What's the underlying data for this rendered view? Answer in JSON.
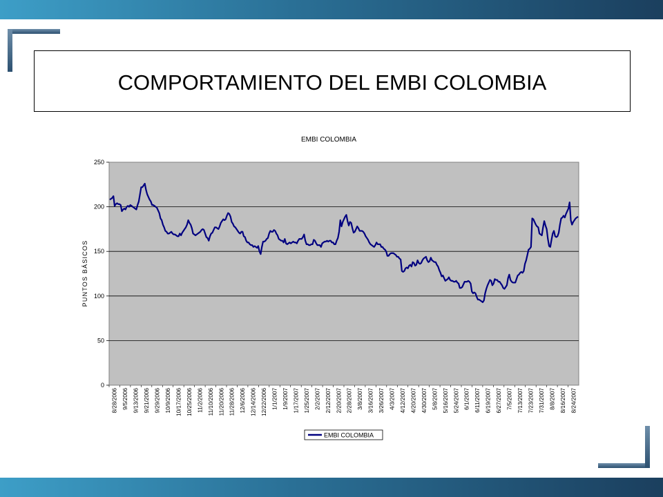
{
  "slide": {
    "title": "COMPORTAMIENTO DEL EMBI COLOMBIA"
  },
  "colors": {
    "band_light": "#3d9ec7",
    "band_dark": "#1b3f5e",
    "plot_background": "#c0c0c0",
    "series_line": "#000080"
  },
  "chart_data": {
    "type": "line",
    "title": "EMBI COLOMBIA",
    "xlabel": "",
    "ylabel": "PUNTOS BÁSICOS",
    "ylim": [
      0,
      250
    ],
    "yticks": [
      0,
      50,
      100,
      150,
      200,
      250
    ],
    "grid": true,
    "legend": "bottom",
    "x_tick_labels": [
      "8/28/2006",
      "9/5/2006",
      "9/13/2006",
      "9/21/2006",
      "9/29/2006",
      "10/9/2006",
      "10/17/2006",
      "10/25/2006",
      "11/2/2006",
      "11/10/2006",
      "11/20/2006",
      "11/28/2006",
      "12/6/2006",
      "12/14/2006",
      "12/22/2006",
      "1/1/2007",
      "1/9/2007",
      "1/17/2007",
      "1/25/2007",
      "2/2/2007",
      "2/12/2007",
      "2/20/2007",
      "2/28/2007",
      "3/8/2007",
      "3/16/2007",
      "3/26/2007",
      "4/3/2007",
      "4/12/2007",
      "4/20/2007",
      "4/30/2007",
      "5/8/2007",
      "5/16/2007",
      "5/24/2007",
      "6/1/2007",
      "6/11/2007",
      "6/19/2007",
      "6/27/2007",
      "7/5/2007",
      "7/13/2007",
      "7/23/2007",
      "7/31/2007",
      "8/8/2007",
      "8/16/2007",
      "8/24/2007"
    ],
    "series": [
      {
        "name": "EMBI COLOMBIA",
        "values": [
          208,
          209,
          210,
          212,
          201,
          203,
          204,
          203,
          203,
          202,
          195,
          197,
          198,
          197,
          200,
          201,
          200,
          202,
          201,
          200,
          199,
          198,
          197,
          202,
          206,
          214,
          222,
          222,
          224,
          226,
          219,
          214,
          211,
          208,
          206,
          202,
          202,
          201,
          200,
          199,
          196,
          193,
          187,
          185,
          180,
          177,
          173,
          172,
          170,
          170,
          171,
          172,
          170,
          169,
          169,
          168,
          167,
          167,
          170,
          168,
          171,
          173,
          175,
          177,
          180,
          185,
          182,
          180,
          176,
          170,
          169,
          168,
          169,
          170,
          171,
          172,
          174,
          175,
          174,
          170,
          166,
          165,
          162,
          167,
          170,
          171,
          174,
          177,
          177,
          176,
          175,
          178,
          182,
          184,
          186,
          185,
          186,
          190,
          193,
          192,
          189,
          183,
          181,
          178,
          177,
          175,
          173,
          171,
          170,
          172,
          172,
          167,
          166,
          162,
          160,
          160,
          158,
          157,
          157,
          155,
          156,
          155,
          154,
          156,
          150,
          147,
          155,
          161,
          161,
          162,
          164,
          165,
          170,
          173,
          172,
          172,
          174,
          173,
          170,
          168,
          164,
          163,
          162,
          162,
          160,
          164,
          159,
          158,
          159,
          160,
          159,
          160,
          161,
          160,
          160,
          159,
          162,
          164,
          164,
          164,
          166,
          169,
          162,
          158,
          158,
          157,
          157,
          158,
          158,
          163,
          162,
          159,
          157,
          157,
          157,
          155,
          159,
          160,
          161,
          161,
          162,
          161,
          162,
          162,
          160,
          160,
          158,
          158,
          162,
          165,
          172,
          185,
          178,
          183,
          186,
          189,
          191,
          184,
          179,
          183,
          182,
          176,
          171,
          172,
          175,
          178,
          176,
          173,
          173,
          173,
          172,
          170,
          167,
          165,
          163,
          160,
          158,
          157,
          156,
          155,
          157,
          160,
          158,
          158,
          158,
          155,
          155,
          153,
          152,
          150,
          145,
          145,
          147,
          148,
          148,
          148,
          147,
          146,
          144,
          144,
          142,
          141,
          128,
          127,
          128,
          131,
          132,
          131,
          134,
          135,
          133,
          138,
          137,
          134,
          135,
          140,
          137,
          136,
          137,
          140,
          142,
          143,
          144,
          140,
          138,
          139,
          143,
          140,
          139,
          138,
          138,
          135,
          133,
          129,
          126,
          122,
          123,
          120,
          117,
          118,
          119,
          121,
          118,
          117,
          117,
          116,
          116,
          117,
          115,
          114,
          109,
          109,
          110,
          113,
          116,
          116,
          116,
          117,
          116,
          114,
          105,
          103,
          104,
          103,
          99,
          96,
          96,
          95,
          94,
          93,
          95,
          103,
          108,
          112,
          115,
          118,
          117,
          112,
          114,
          119,
          118,
          118,
          116,
          116,
          114,
          112,
          109,
          108,
          110,
          112,
          120,
          124,
          118,
          116,
          115,
          115,
          115,
          119,
          123,
          124,
          126,
          127,
          126,
          128,
          136,
          140,
          146,
          152,
          153,
          155,
          187,
          186,
          183,
          180,
          178,
          177,
          170,
          169,
          168,
          177,
          184,
          179,
          175,
          164,
          156,
          155,
          163,
          170,
          173,
          167,
          166,
          167,
          171,
          180,
          187,
          188,
          190,
          188,
          192,
          195,
          198,
          205,
          185,
          180,
          183,
          185,
          187,
          188,
          189
        ]
      }
    ]
  }
}
